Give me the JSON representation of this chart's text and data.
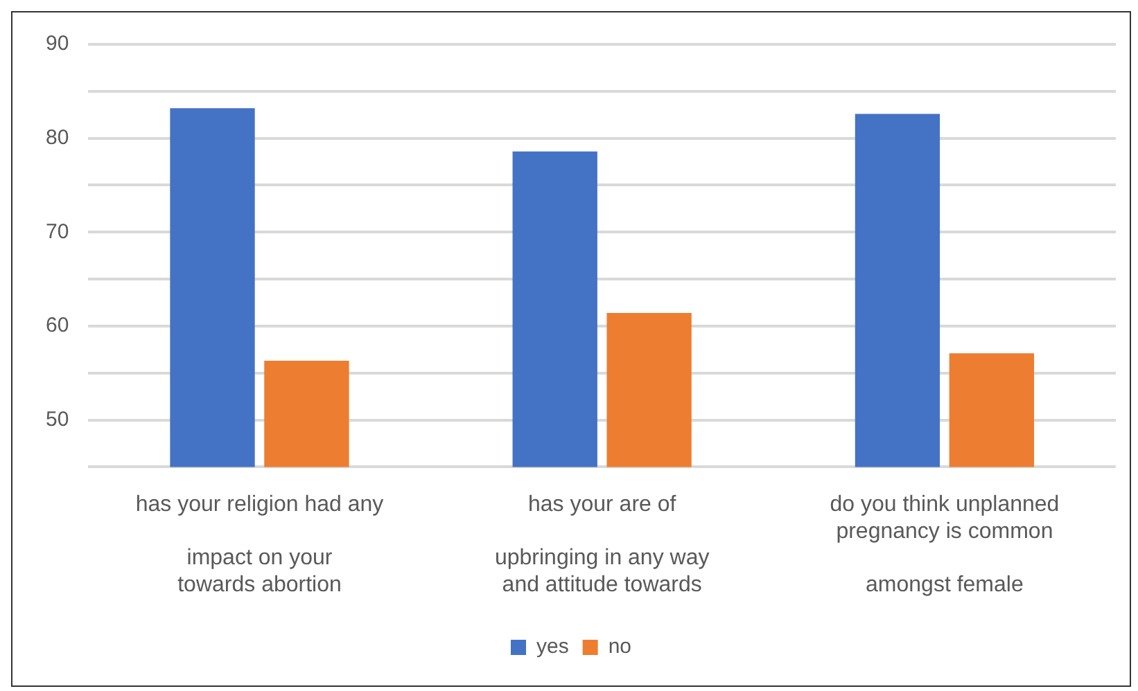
{
  "chart_data": {
    "type": "bar",
    "categories": [
      "has your religion had any\n\nimpact on your\ntowards abortion",
      "has your are of\n\nupbringing in any way\nand attitude towards",
      "do you think unplanned\npregnancy is common\n\namongst female"
    ],
    "series": [
      {
        "name": "yes",
        "color": "#4472c4",
        "values": [
          83.2,
          78.6,
          82.6
        ]
      },
      {
        "name": "no",
        "color": "#ed7d31",
        "values": [
          56.3,
          61.4,
          57.1
        ]
      }
    ],
    "ylim": [
      45,
      90
    ],
    "yticks": [
      {
        "value": 45,
        "label": null
      },
      50,
      {
        "value": 55,
        "label": null
      },
      60,
      {
        "value": 65,
        "label": null
      },
      70,
      {
        "value": 75,
        "label": null
      },
      80,
      {
        "value": 85,
        "label": null
      },
      90
    ],
    "grid": "y",
    "legend": "bottom"
  }
}
